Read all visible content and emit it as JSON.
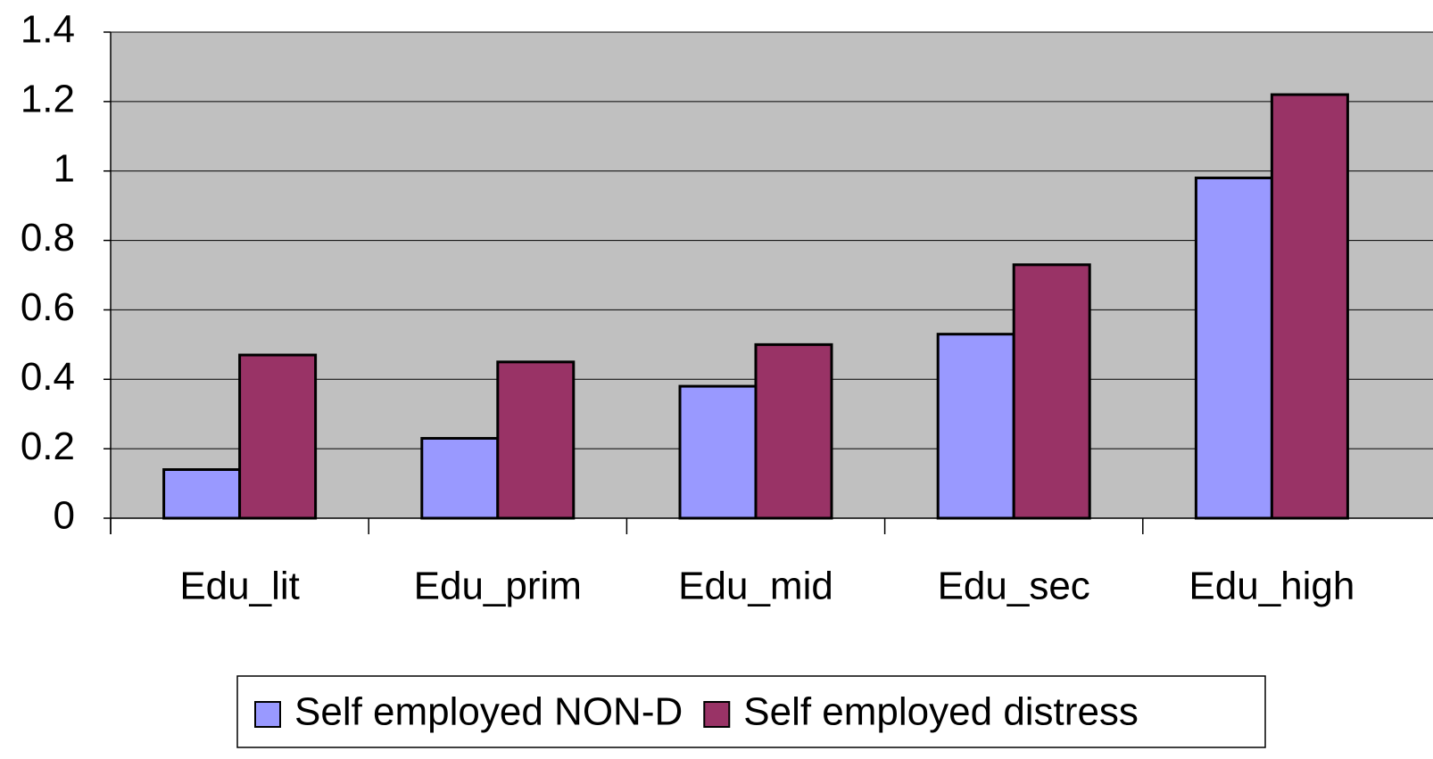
{
  "chart_data": {
    "type": "bar",
    "categories": [
      "Edu_lit",
      "Edu_prim",
      "Edu_mid",
      "Edu_sec",
      "Edu_high"
    ],
    "series": [
      {
        "name": "Self employed NON-D",
        "color": "#9999ff",
        "values": [
          0.14,
          0.23,
          0.38,
          0.53,
          0.98
        ]
      },
      {
        "name": "Self employed distress",
        "color": "#993366",
        "values": [
          0.47,
          0.45,
          0.5,
          0.73,
          1.22
        ]
      }
    ],
    "ylim": [
      0,
      1.4
    ],
    "yticks": [
      0,
      0.2,
      0.4,
      0.6,
      0.8,
      1,
      1.2,
      1.4
    ],
    "grid": true,
    "legend": "bottom"
  }
}
